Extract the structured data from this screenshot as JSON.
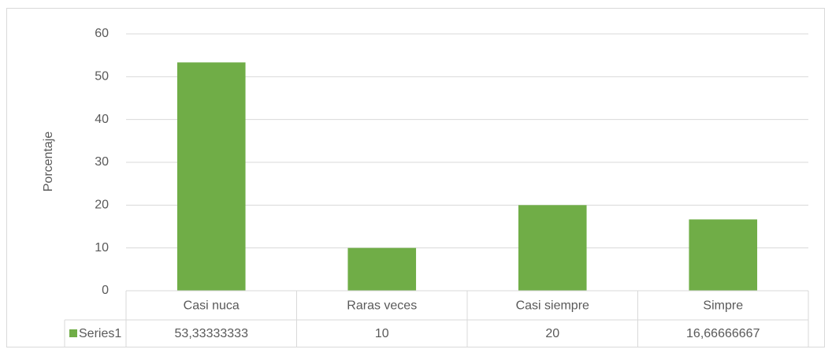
{
  "chart_data": {
    "type": "bar",
    "y_axis_label": "Porcentaje",
    "categories": [
      "Casi nuca",
      "Raras veces",
      "Casi siempre",
      "Simpre"
    ],
    "series": [
      {
        "name": "Series1",
        "color": "#70ad47",
        "values": [
          53.33333333,
          10,
          20,
          16.66666667
        ],
        "value_labels": [
          "53,33333333",
          "10",
          "20",
          "16,66666667"
        ]
      }
    ],
    "ylim": [
      0,
      60
    ],
    "yticks": [
      0,
      10,
      20,
      30,
      40,
      50,
      60
    ],
    "grid": true,
    "data_table": true
  }
}
